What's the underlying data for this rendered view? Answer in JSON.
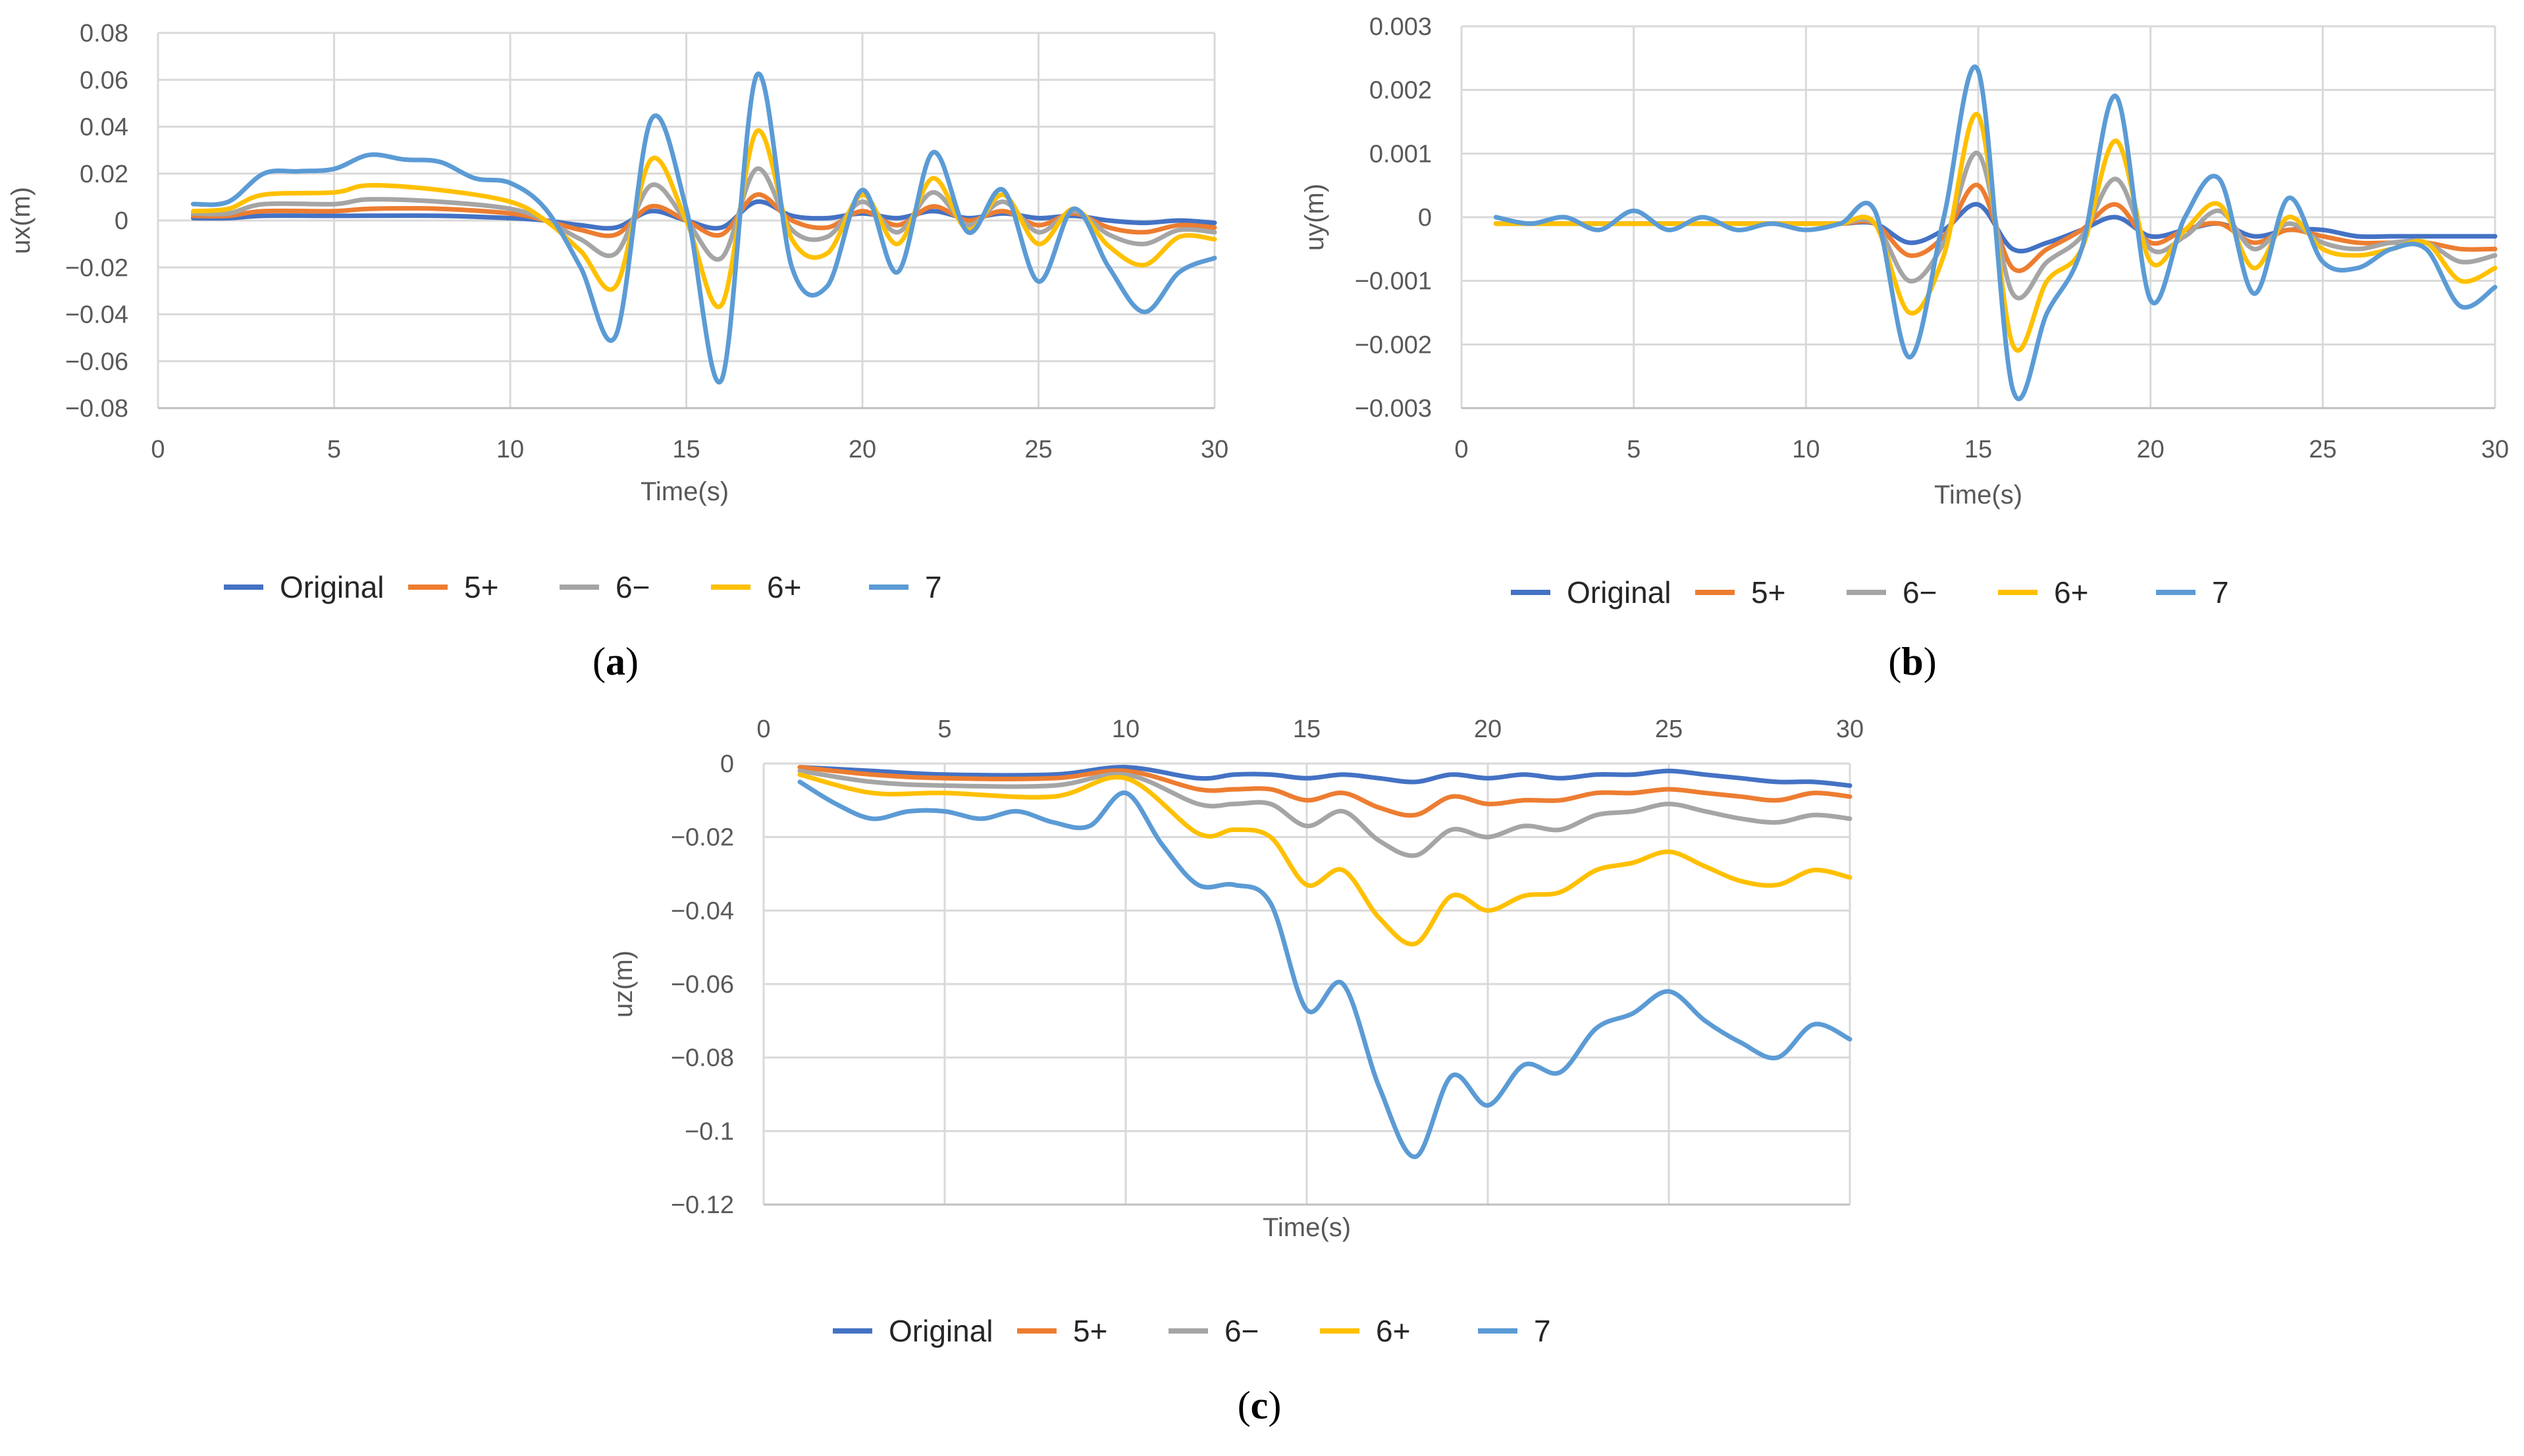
{
  "colors": {
    "Original": "#4472c4",
    "5+": "#ed7d31",
    "6−": "#a5a5a5",
    "6+": "#ffc000",
    "7": "#5b9bd5",
    "grid": "#d9d9d9",
    "axis": "#bfbfbf",
    "text": "#595959"
  },
  "chart_data": [
    {
      "type": "line",
      "panel": "(a)",
      "panel_letter": "a",
      "xlabel": "Time(s)",
      "ylabel": "ux(m)",
      "xlim": [
        0,
        30
      ],
      "ylim": [
        -0.08,
        0.08
      ],
      "x_ticks": [
        0,
        5,
        10,
        15,
        20,
        25,
        30
      ],
      "y_ticks": [
        0.08,
        0.06,
        0.04,
        0.02,
        0,
        -0.02,
        -0.04,
        -0.06,
        -0.08
      ],
      "x_tick_labels": [
        "0",
        "5",
        "10",
        "15",
        "20",
        "25",
        "30"
      ],
      "y_tick_labels": [
        "0.08",
        "0.06",
        "0.04",
        "0.02",
        "0",
        "−0.02",
        "−0.04",
        "−0.06",
        "−0.08"
      ],
      "x_axis_position": "bottom",
      "grid": true,
      "legend": "bottom",
      "legend_labels": [
        "Original",
        "5+",
        "6−",
        "6+",
        "7"
      ],
      "series": [
        {
          "name": "Original",
          "x": [
            1,
            2,
            3,
            5,
            8,
            10,
            11,
            12,
            13,
            14,
            15,
            16,
            17,
            18,
            19,
            20,
            21,
            22,
            23,
            24,
            25,
            26,
            27,
            28,
            29,
            30
          ],
          "y": [
            0.001,
            0.001,
            0.002,
            0.002,
            0.002,
            0.001,
            0.0,
            -0.002,
            -0.003,
            0.004,
            0.0,
            -0.003,
            0.008,
            0.002,
            0.001,
            0.003,
            0.001,
            0.004,
            0.001,
            0.003,
            0.001,
            0.002,
            0.0,
            -0.001,
            0.0,
            -0.001
          ]
        },
        {
          "name": "5+",
          "x": [
            1,
            2,
            3,
            5,
            6,
            8,
            10,
            11,
            12,
            13,
            14,
            15,
            16,
            17,
            18,
            19,
            20,
            21,
            22,
            23,
            24,
            25,
            26,
            27,
            28,
            29,
            30
          ],
          "y": [
            0.002,
            0.002,
            0.004,
            0.004,
            0.005,
            0.005,
            0.003,
            0.0,
            -0.004,
            -0.006,
            0.006,
            0.0,
            -0.006,
            0.011,
            0.0,
            -0.003,
            0.004,
            -0.002,
            0.006,
            0.0,
            0.004,
            -0.002,
            0.003,
            -0.003,
            -0.005,
            -0.002,
            -0.003
          ]
        },
        {
          "name": "6−",
          "x": [
            1,
            2,
            3,
            5,
            6,
            8,
            10,
            11,
            12,
            13,
            14,
            15,
            16,
            17,
            18,
            19,
            20,
            21,
            22,
            23,
            24,
            25,
            26,
            27,
            28,
            29,
            30
          ],
          "y": [
            0.003,
            0.003,
            0.007,
            0.007,
            0.009,
            0.008,
            0.005,
            0.0,
            -0.008,
            -0.014,
            0.015,
            0.0,
            -0.016,
            0.022,
            -0.004,
            -0.007,
            0.008,
            -0.005,
            0.012,
            -0.002,
            0.008,
            -0.005,
            0.004,
            -0.006,
            -0.01,
            -0.004,
            -0.005
          ]
        },
        {
          "name": "6+",
          "x": [
            1,
            2,
            3,
            5,
            6,
            8,
            10,
            11,
            12,
            13,
            14,
            15,
            16,
            17,
            18,
            19,
            20,
            21,
            22,
            23,
            24,
            25,
            26,
            27,
            28,
            29,
            30
          ],
          "y": [
            0.004,
            0.005,
            0.011,
            0.012,
            0.015,
            0.013,
            0.008,
            0.0,
            -0.013,
            -0.028,
            0.026,
            0.0,
            -0.036,
            0.038,
            -0.008,
            -0.014,
            0.011,
            -0.01,
            0.018,
            -0.004,
            0.011,
            -0.01,
            0.005,
            -0.011,
            -0.019,
            -0.007,
            -0.008
          ]
        },
        {
          "name": "7",
          "x": [
            1,
            2,
            3,
            4,
            5,
            6,
            7,
            8,
            9,
            10,
            11,
            12,
            13,
            14,
            15,
            16,
            17,
            18,
            19,
            20,
            21,
            22,
            23,
            24,
            25,
            26,
            27,
            28,
            29,
            30
          ],
          "y": [
            0.007,
            0.008,
            0.02,
            0.021,
            0.022,
            0.028,
            0.026,
            0.025,
            0.018,
            0.016,
            0.005,
            -0.02,
            -0.049,
            0.043,
            0.005,
            -0.068,
            0.062,
            -0.02,
            -0.028,
            0.013,
            -0.022,
            0.029,
            -0.005,
            0.013,
            -0.026,
            0.005,
            -0.02,
            -0.039,
            -0.022,
            -0.016
          ]
        }
      ]
    },
    {
      "type": "line",
      "panel": "(b)",
      "panel_letter": "b",
      "xlabel": "Time(s)",
      "ylabel": "uy(m)",
      "xlim": [
        0,
        30
      ],
      "ylim": [
        -0.003,
        0.003
      ],
      "x_ticks": [
        0,
        5,
        10,
        15,
        20,
        25,
        30
      ],
      "y_ticks": [
        0.003,
        0.002,
        0.001,
        0,
        -0.001,
        -0.002,
        -0.003
      ],
      "x_tick_labels": [
        "0",
        "5",
        "10",
        "15",
        "20",
        "25",
        "30"
      ],
      "y_tick_labels": [
        "0.003",
        "0.002",
        "0.001",
        "0",
        "−0.001",
        "−0.002",
        "−0.003"
      ],
      "x_axis_position": "bottom",
      "grid": true,
      "legend": "bottom",
      "legend_labels": [
        "Original",
        "5+",
        "6−",
        "6+",
        "7"
      ],
      "series": [
        {
          "name": "Original",
          "x": [
            1,
            3,
            5,
            8,
            10,
            11,
            12,
            13,
            14,
            15,
            16,
            17,
            18,
            19,
            20,
            21,
            22,
            23,
            24,
            25,
            26,
            27,
            28,
            29,
            30
          ],
          "y": [
            -0.0001,
            -0.0001,
            -0.0001,
            -0.0001,
            -0.0001,
            -0.0001,
            -0.0001,
            -0.0004,
            -0.0002,
            0.0002,
            -0.0005,
            -0.0004,
            -0.0002,
            0.0,
            -0.0003,
            -0.0002,
            -0.0001,
            -0.0003,
            -0.0002,
            -0.0002,
            -0.0003,
            -0.0003,
            -0.0003,
            -0.0003,
            -0.0003
          ]
        },
        {
          "name": "5+",
          "x": [
            1,
            3,
            5,
            8,
            10,
            11,
            12,
            13,
            14,
            15,
            16,
            17,
            18,
            19,
            20,
            21,
            22,
            23,
            24,
            25,
            26,
            27,
            28,
            29,
            30
          ],
          "y": [
            -0.0001,
            -0.0001,
            -0.0001,
            -0.0001,
            -0.0001,
            -0.0001,
            -0.0001,
            -0.0006,
            -0.0003,
            0.0005,
            -0.0008,
            -0.0005,
            -0.0002,
            0.0002,
            -0.0004,
            -0.0002,
            -0.0001,
            -0.0004,
            -0.0002,
            -0.0003,
            -0.0004,
            -0.0004,
            -0.0004,
            -0.0005,
            -0.0005
          ]
        },
        {
          "name": "6−",
          "x": [
            1,
            3,
            5,
            8,
            10,
            11,
            12,
            13,
            14,
            15,
            16,
            17,
            18,
            19,
            20,
            21,
            22,
            23,
            24,
            25,
            26,
            27,
            28,
            29,
            30
          ],
          "y": [
            -0.0001,
            -0.0001,
            -0.0001,
            -0.0001,
            -0.0001,
            -0.0001,
            -0.0001,
            -0.001,
            -0.0004,
            0.001,
            -0.0012,
            -0.0007,
            -0.0003,
            0.0006,
            -0.0005,
            -0.0003,
            0.0001,
            -0.0005,
            -0.0001,
            -0.0004,
            -0.0005,
            -0.0004,
            -0.0004,
            -0.0007,
            -0.0006
          ]
        },
        {
          "name": "6+",
          "x": [
            1,
            3,
            5,
            8,
            10,
            11,
            12,
            13,
            14,
            15,
            16,
            17,
            18,
            19,
            20,
            21,
            22,
            23,
            24,
            25,
            26,
            27,
            28,
            29,
            30
          ],
          "y": [
            -0.0001,
            -0.0001,
            -0.0001,
            -0.0001,
            -0.0001,
            -0.0001,
            -0.0001,
            -0.0015,
            -0.0006,
            0.0016,
            -0.002,
            -0.001,
            -0.0005,
            0.0012,
            -0.0007,
            -0.0002,
            0.0002,
            -0.0008,
            0.0,
            -0.0005,
            -0.0006,
            -0.0005,
            -0.0004,
            -0.001,
            -0.0008
          ]
        },
        {
          "name": "7",
          "x": [
            1,
            2,
            3,
            4,
            5,
            6,
            7,
            8,
            9,
            10,
            11,
            12,
            13,
            14,
            15,
            16,
            17,
            18,
            19,
            20,
            21,
            22,
            23,
            24,
            25,
            26,
            27,
            28,
            29,
            30
          ],
          "y": [
            0.0,
            -0.0001,
            0.0,
            -0.0002,
            0.0001,
            -0.0002,
            0.0,
            -0.0002,
            -0.0001,
            -0.0002,
            -0.0001,
            0.0001,
            -0.0022,
            0.0,
            0.0023,
            -0.0027,
            -0.0015,
            -0.0005,
            0.0019,
            -0.0013,
            0.0,
            0.0006,
            -0.0012,
            0.0003,
            -0.0007,
            -0.0008,
            -0.0005,
            -0.0005,
            -0.0014,
            -0.0011
          ]
        }
      ]
    },
    {
      "type": "line",
      "panel": "(c)",
      "panel_letter": "c",
      "xlabel": "Time(s)",
      "ylabel": "uz(m)",
      "xlim": [
        0,
        30
      ],
      "ylim": [
        -0.12,
        0
      ],
      "x_ticks": [
        0,
        5,
        10,
        15,
        20,
        25,
        30
      ],
      "y_ticks": [
        0,
        -0.02,
        -0.04,
        -0.06,
        -0.08,
        -0.1,
        -0.12
      ],
      "x_tick_labels": [
        "0",
        "5",
        "10",
        "15",
        "20",
        "25",
        "30"
      ],
      "y_tick_labels": [
        "0",
        "−0.02",
        "−0.04",
        "−0.06",
        "−0.08",
        "−0.1",
        "−0.12"
      ],
      "x_axis_position": "top",
      "grid": true,
      "legend": "bottom",
      "legend_labels": [
        "Original",
        "5+",
        "6−",
        "6+",
        "7"
      ],
      "series": [
        {
          "name": "Original",
          "x": [
            1,
            3,
            5,
            8,
            10,
            12,
            13,
            14,
            15,
            16,
            17,
            18,
            19,
            20,
            21,
            22,
            23,
            24,
            25,
            26,
            27,
            28,
            29,
            30
          ],
          "y": [
            -0.001,
            -0.002,
            -0.003,
            -0.003,
            -0.001,
            -0.004,
            -0.003,
            -0.003,
            -0.004,
            -0.003,
            -0.004,
            -0.005,
            -0.003,
            -0.004,
            -0.003,
            -0.004,
            -0.003,
            -0.003,
            -0.002,
            -0.003,
            -0.004,
            -0.005,
            -0.005,
            -0.006
          ]
        },
        {
          "name": "5+",
          "x": [
            1,
            3,
            5,
            8,
            10,
            12,
            13,
            14,
            15,
            16,
            17,
            18,
            19,
            20,
            21,
            22,
            23,
            24,
            25,
            26,
            27,
            28,
            29,
            30
          ],
          "y": [
            -0.001,
            -0.003,
            -0.004,
            -0.004,
            -0.002,
            -0.007,
            -0.007,
            -0.007,
            -0.01,
            -0.008,
            -0.012,
            -0.014,
            -0.009,
            -0.011,
            -0.01,
            -0.01,
            -0.008,
            -0.008,
            -0.007,
            -0.008,
            -0.009,
            -0.01,
            -0.008,
            -0.009
          ]
        },
        {
          "name": "6−",
          "x": [
            1,
            3,
            5,
            8,
            10,
            12,
            13,
            14,
            15,
            16,
            17,
            18,
            19,
            20,
            21,
            22,
            23,
            24,
            25,
            26,
            27,
            28,
            29,
            30
          ],
          "y": [
            -0.002,
            -0.005,
            -0.006,
            -0.006,
            -0.003,
            -0.011,
            -0.011,
            -0.011,
            -0.017,
            -0.013,
            -0.021,
            -0.025,
            -0.018,
            -0.02,
            -0.017,
            -0.018,
            -0.014,
            -0.013,
            -0.011,
            -0.013,
            -0.015,
            -0.016,
            -0.014,
            -0.015
          ]
        },
        {
          "name": "6+",
          "x": [
            1,
            3,
            5,
            8,
            10,
            12,
            13,
            14,
            15,
            16,
            17,
            18,
            19,
            20,
            21,
            22,
            23,
            24,
            25,
            26,
            27,
            28,
            29,
            30
          ],
          "y": [
            -0.003,
            -0.008,
            -0.008,
            -0.009,
            -0.004,
            -0.019,
            -0.018,
            -0.02,
            -0.033,
            -0.029,
            -0.042,
            -0.049,
            -0.036,
            -0.04,
            -0.036,
            -0.035,
            -0.029,
            -0.027,
            -0.024,
            -0.028,
            -0.032,
            -0.033,
            -0.029,
            -0.031
          ]
        },
        {
          "name": "7",
          "x": [
            1,
            2,
            3,
            4,
            5,
            6,
            7,
            8,
            9,
            10,
            11,
            12,
            13,
            14,
            15,
            16,
            17,
            18,
            19,
            20,
            21,
            22,
            23,
            24,
            25,
            26,
            27,
            28,
            29,
            30
          ],
          "y": [
            -0.005,
            -0.011,
            -0.015,
            -0.013,
            -0.013,
            -0.015,
            -0.013,
            -0.016,
            -0.017,
            -0.008,
            -0.022,
            -0.033,
            -0.033,
            -0.038,
            -0.067,
            -0.06,
            -0.088,
            -0.107,
            -0.085,
            -0.093,
            -0.082,
            -0.084,
            -0.072,
            -0.068,
            -0.062,
            -0.07,
            -0.076,
            -0.08,
            -0.071,
            -0.075
          ]
        }
      ]
    }
  ]
}
